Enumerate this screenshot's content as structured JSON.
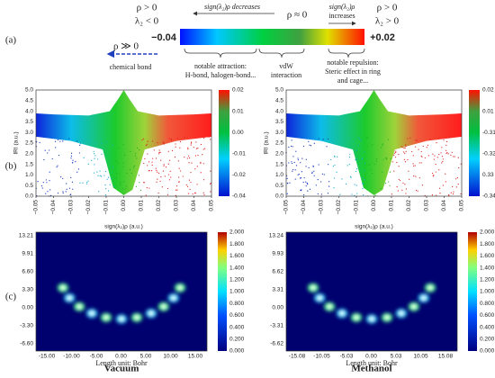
{
  "panel_labels": [
    "(a)",
    "(b)",
    "(c)"
  ],
  "scheme": {
    "left_rho": "ρ > 0",
    "left_lambda": "λ₂ < 0",
    "decreases": "sign(λ₂)ρ decreases",
    "middle_rho": "ρ ≈ 0",
    "increases_1": "sign(λ₂)ρ",
    "increases_2": "increases",
    "right_rho": "ρ > 0",
    "right_lambda": "λ₂ > 0",
    "min": "−0.04",
    "max": "+0.02",
    "bond_rho": "ρ ≫ 0",
    "bond": "chemical bond",
    "attraction": [
      "notable attraction:",
      "H-bond, halogen-bond..."
    ],
    "vdw": [
      "vdW",
      "interaction"
    ],
    "repulsion": [
      "notable repulsion:",
      "Steric effect in ring",
      "and cage..."
    ]
  },
  "scatter_plots": [
    {
      "ylabel": "IRI (a.u.)",
      "xlabel": "sign(λ₂)ρ (a.u.)",
      "yticks": [
        "0.0",
        "0.5",
        "1.0",
        "1.5",
        "2.0",
        "2.5",
        "3.0",
        "3.5",
        "4.0",
        "4.5",
        "5.0"
      ],
      "xticks": [
        "−0.05",
        "−0.04",
        "−0.03",
        "−0.02",
        "−0.01",
        "0.00",
        "0.01",
        "0.02",
        "0.03",
        "0.04",
        "0.05"
      ],
      "colorbar": [
        "0.02",
        "0.01",
        "0.00",
        "-0.01",
        "-0.02",
        "-0.04"
      ]
    },
    {
      "ylabel": "IRI (a.u.)",
      "xlabel": "sign(λ₂)ρ (a.u.)",
      "yticks": [
        "0.0",
        "0.5",
        "1.0",
        "1.5",
        "2.0",
        "2.5",
        "3.0",
        "3.5",
        "4.0",
        "4.5",
        "5.0"
      ],
      "xticks": [
        "−0.05",
        "−0.04",
        "−0.03",
        "−0.02",
        "−0.01",
        "0.00",
        "0.01",
        "0.02",
        "0.03",
        "0.04",
        "0.05"
      ],
      "colorbar": [
        "0.02",
        "0.01",
        "-0.31",
        "-0.32",
        "0.33",
        "-0.34"
      ]
    }
  ],
  "maps": [
    {
      "name": "Vacuum",
      "yticks": [
        "13.21",
        "9.91",
        "6.60",
        "3.30",
        "0.00",
        "-3.30",
        "-6.60"
      ],
      "xticks": [
        "-15.00",
        "-10.00",
        "-5.00",
        "0.00",
        "5.00",
        "10.00",
        "15.00"
      ],
      "xlabel": "Length unit: Bohr",
      "colorbar": [
        "2.000",
        "1.800",
        "1.600",
        "1.400",
        "1.200",
        "1.000",
        "0.800",
        "0.600",
        "0.400",
        "0.200",
        "0.000"
      ]
    },
    {
      "name": "Methanol",
      "yticks": [
        "13.24",
        "9.93",
        "6.62",
        "3.31",
        "0.00",
        "-3.31",
        "-6.62"
      ],
      "xticks": [
        "-15.08",
        "-10.05",
        "-5.03",
        "0.00",
        "5.03",
        "10.05",
        "15.08"
      ],
      "xlabel": "Length unit: Bohr",
      "colorbar": [
        "2.000",
        "1.800",
        "1.600",
        "1.400",
        "1.200",
        "1.000",
        "0.800",
        "0.600",
        "0.400",
        "0.200",
        "0.000"
      ]
    }
  ]
}
